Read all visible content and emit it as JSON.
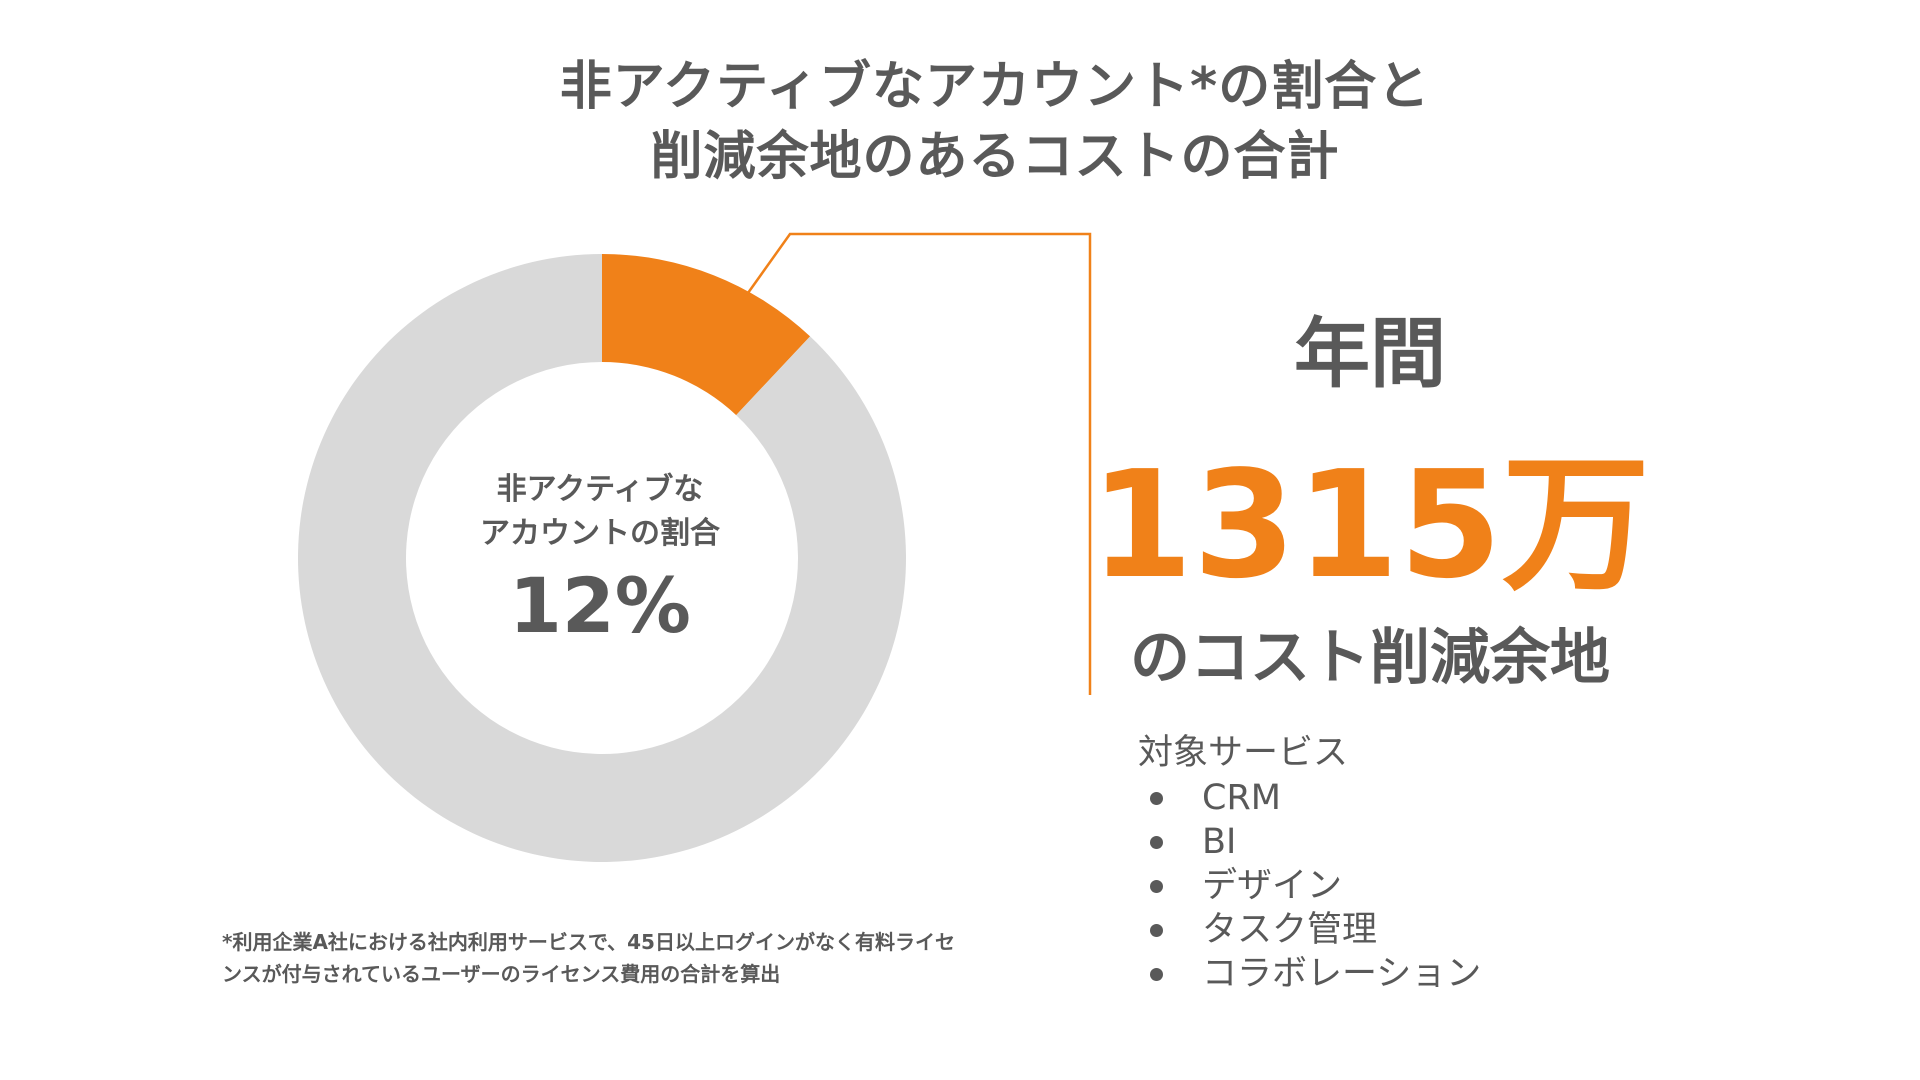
{
  "title": {
    "line1": "非アクティブなアカウント*の割合と",
    "line2": "削減余地のあるコストの合計"
  },
  "chart_data": {
    "type": "pie",
    "style": "donut",
    "slices": [
      {
        "label": "非アクティブなアカウント",
        "value": 12,
        "color": "#F08119"
      },
      {
        "label": "",
        "value": 88,
        "color": "#D9D9D9"
      }
    ],
    "center_label": {
      "line1": "非アクティブな",
      "line2": "アカウントの割合",
      "value": "12%"
    }
  },
  "callout": {
    "annual_label": "年間",
    "amount": "1315万",
    "suffix": "のコスト削減余地",
    "line_color": "#F08119"
  },
  "services": {
    "heading": "対象サービス",
    "items": [
      "CRM",
      "BI",
      "デザイン",
      "タスク管理",
      "コラボレーション"
    ]
  },
  "footnote": {
    "line1": "*利用企業A社における社内利用サービスで、45日以上ログインがなく有料ライセ",
    "line2": "ンスが付与されているユーザーのライセンス費用の合計を算出"
  },
  "colors": {
    "accent": "#F08119",
    "text": "#595959",
    "remainder": "#D9D9D9"
  }
}
